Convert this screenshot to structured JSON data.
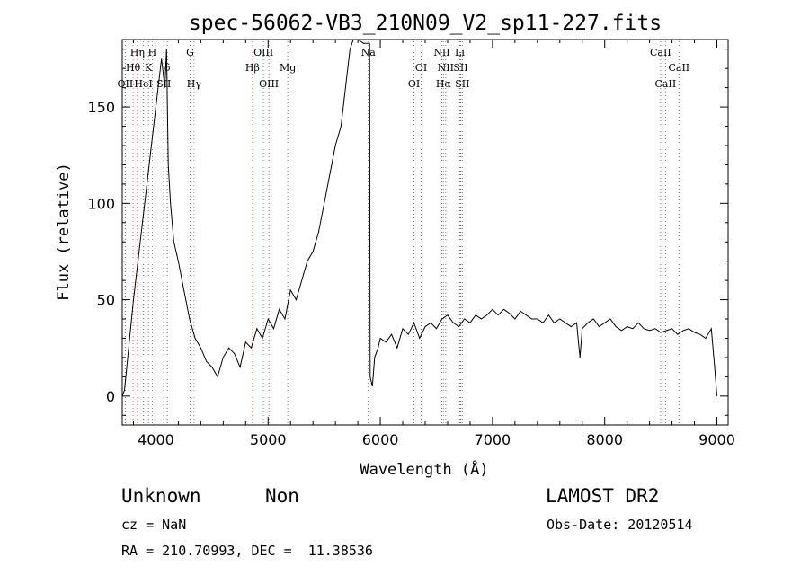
{
  "chart_data": {
    "type": "line",
    "title": "spec-56062-VB3_210N09_V2_sp11-227.fits",
    "xlabel": "Wavelength (Å)",
    "ylabel": "Flux (relative)",
    "xlim": [
      3700,
      9100
    ],
    "ylim": [
      -15,
      185
    ],
    "xticks": [
      4000,
      5000,
      6000,
      7000,
      8000,
      9000
    ],
    "yticks": [
      0,
      50,
      100,
      150
    ],
    "grid": false,
    "series": [
      {
        "x": [
          3700,
          3720,
          3800,
          3900,
          4000,
          4050,
          4080,
          4095,
          4110,
          4130,
          4160,
          4200,
          4250,
          4300,
          4350,
          4400,
          4450,
          4500,
          4550,
          4600,
          4650,
          4700,
          4750,
          4800,
          4850,
          4900,
          4950,
          5000,
          5050,
          5100,
          5150,
          5200,
          5250,
          5300,
          5350,
          5400,
          5450,
          5500,
          5550,
          5600,
          5650,
          5700,
          5730,
          5760,
          5790,
          5800,
          5850,
          5880,
          5905,
          5910,
          5930,
          5950,
          5980,
          6000,
          6050,
          6100,
          6150,
          6200,
          6250,
          6300,
          6350,
          6400,
          6450,
          6500,
          6550,
          6600,
          6650,
          6700,
          6750,
          6800,
          6850,
          6900,
          6950,
          7000,
          7050,
          7100,
          7150,
          7200,
          7250,
          7300,
          7350,
          7400,
          7450,
          7500,
          7550,
          7600,
          7650,
          7700,
          7750,
          7780,
          7800,
          7850,
          7900,
          7950,
          8000,
          8050,
          8100,
          8150,
          8200,
          8250,
          8300,
          8350,
          8400,
          8450,
          8500,
          8550,
          8600,
          8650,
          8700,
          8750,
          8800,
          8850,
          8900,
          8950,
          8980,
          9000
        ],
        "y": [
          0,
          3,
          50,
          100,
          150,
          175,
          160,
          180,
          120,
          100,
          80,
          70,
          55,
          40,
          30,
          25,
          18,
          15,
          10,
          20,
          25,
          22,
          15,
          28,
          25,
          35,
          30,
          40,
          35,
          45,
          40,
          55,
          50,
          60,
          70,
          75,
          85,
          100,
          115,
          130,
          140,
          165,
          180,
          185,
          185,
          185,
          183,
          183,
          183,
          10,
          5,
          20,
          25,
          30,
          28,
          32,
          25,
          35,
          32,
          38,
          30,
          36,
          38,
          35,
          40,
          42,
          38,
          36,
          40,
          38,
          42,
          40,
          42,
          45,
          42,
          45,
          43,
          40,
          44,
          42,
          40,
          40,
          38,
          42,
          38,
          40,
          38,
          36,
          38,
          20,
          35,
          38,
          40,
          36,
          38,
          40,
          36,
          34,
          36,
          35,
          38,
          35,
          34,
          35,
          33,
          34,
          35,
          32,
          34,
          35,
          33,
          32,
          30,
          35,
          15,
          0
        ]
      }
    ],
    "lines": [
      {
        "label": "Hη",
        "x": 3835,
        "row": 1
      },
      {
        "label": "H",
        "x": 3968,
        "row": 1
      },
      {
        "label": "Hθ",
        "x": 3797,
        "row": 2
      },
      {
        "label": "K",
        "x": 3934,
        "row": 2
      },
      {
        "label": "δ",
        "x": 4102,
        "row": 2
      },
      {
        "label": "OII",
        "x": 3727,
        "row": 3
      },
      {
        "label": "HeI",
        "x": 3889,
        "row": 3
      },
      {
        "label": "SII",
        "x": 4070,
        "row": 3
      },
      {
        "label": "G",
        "x": 4305,
        "row": 1
      },
      {
        "label": "Hγ",
        "x": 4340,
        "row": 3
      },
      {
        "label": "OIII",
        "x": 4959,
        "row": 1
      },
      {
        "label": "Hβ",
        "x": 4861,
        "row": 2
      },
      {
        "label": "OIII",
        "x": 5007,
        "row": 3
      },
      {
        "label": "Mg",
        "x": 5175,
        "row": 2
      },
      {
        "label": "Na",
        "x": 5893,
        "row": 1
      },
      {
        "label": "OI",
        "x": 6300,
        "row": 3
      },
      {
        "label": "OI",
        "x": 6364,
        "row": 2
      },
      {
        "label": "NII",
        "x": 6548,
        "row": 1
      },
      {
        "label": "NII",
        "x": 6583,
        "row": 2
      },
      {
        "label": "Hα",
        "x": 6563,
        "row": 3
      },
      {
        "label": "Li",
        "x": 6708,
        "row": 1
      },
      {
        "label": "SII",
        "x": 6716,
        "row": 2
      },
      {
        "label": "SII",
        "x": 6731,
        "row": 3
      },
      {
        "label": "CaII",
        "x": 8498,
        "row": 1
      },
      {
        "label": "CaII",
        "x": 8542,
        "row": 3
      },
      {
        "label": "CaII",
        "x": 8662,
        "row": 2
      }
    ]
  },
  "info": {
    "class": "Unknown",
    "subclass": "Non",
    "survey": "LAMOST DR2",
    "cz": "cz = NaN",
    "obsdate": "Obs-Date: 20120514",
    "radec": "RA = 210.70993, DEC =  11.38536"
  }
}
